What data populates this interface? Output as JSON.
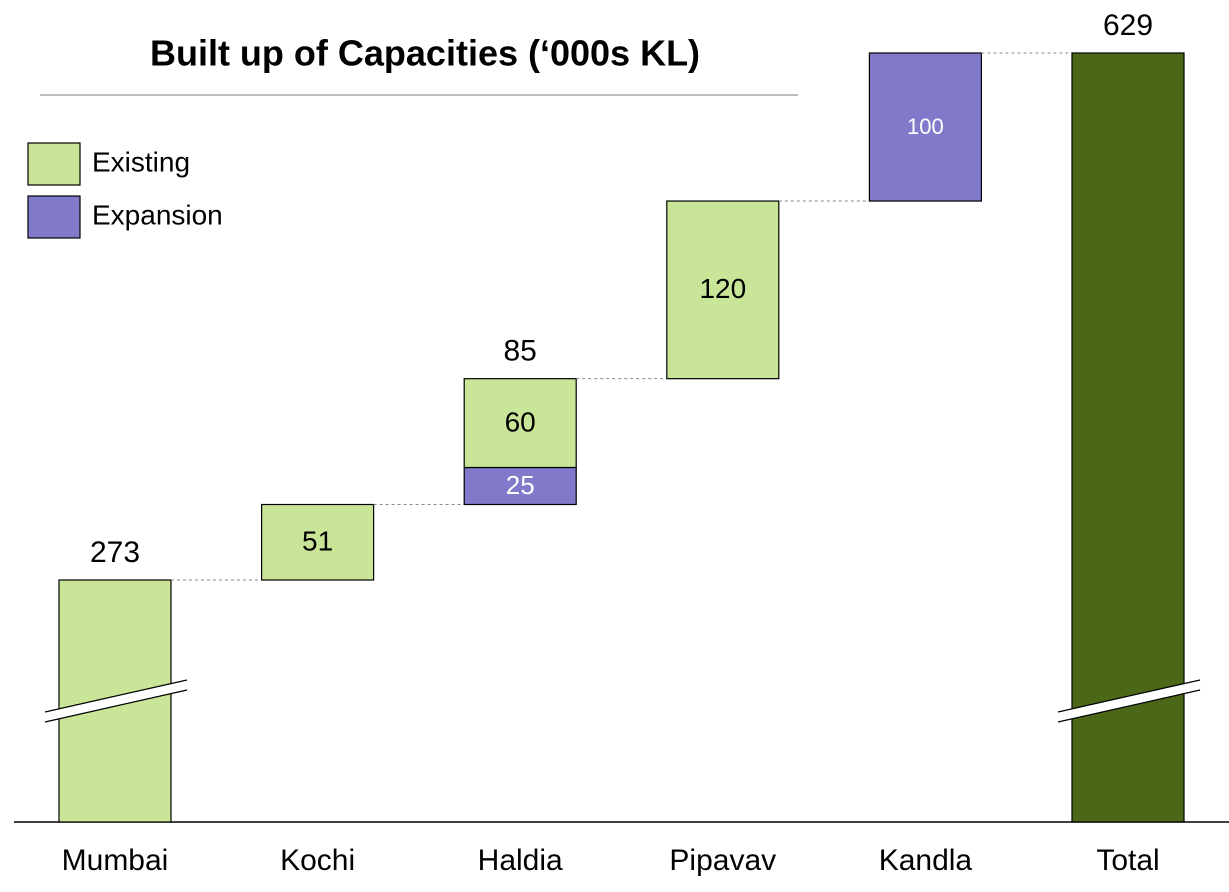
{
  "chart_data": {
    "type": "waterfall",
    "title": "Built up of Capacities (‘000s KL)",
    "categories": [
      "Mumbai",
      "Kochi",
      "Haldia",
      "Pipavav",
      "Kandla",
      "Total"
    ],
    "series": [
      {
        "name": "Existing",
        "color": "#c9e597",
        "values": [
          273,
          51,
          60,
          120,
          null,
          null
        ]
      },
      {
        "name": "Expansion",
        "color": "#8179c9",
        "values": [
          null,
          null,
          25,
          null,
          100,
          null
        ]
      }
    ],
    "stack_totals": [
      null,
      null,
      85,
      null,
      null,
      null
    ],
    "total": 629,
    "total_color": "#4a6818",
    "axis_break": true,
    "legend": "upper left"
  }
}
